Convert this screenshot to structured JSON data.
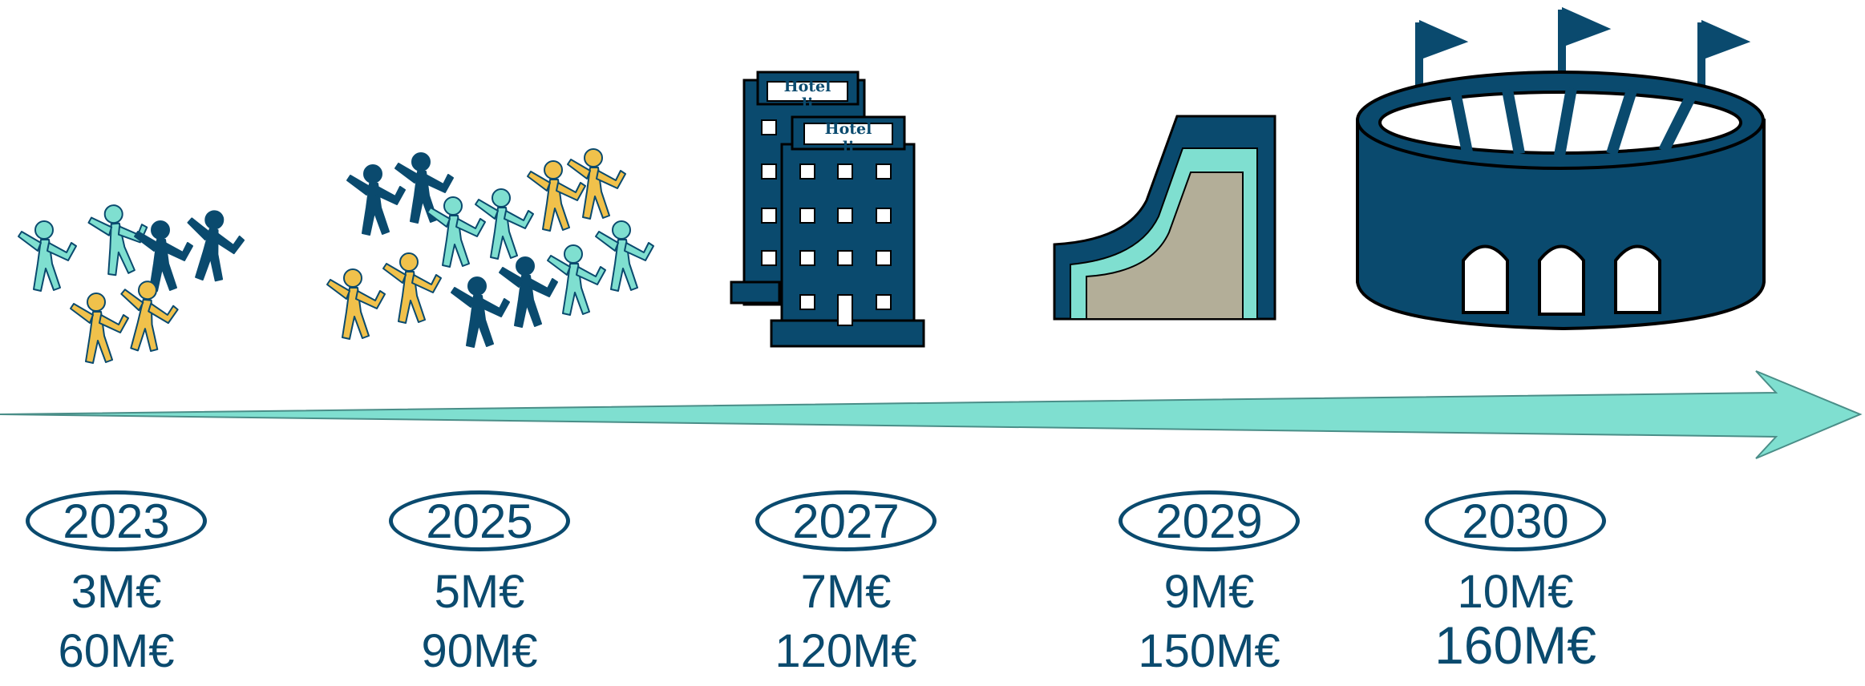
{
  "timeline": {
    "milestones": [
      {
        "year": "2023",
        "amount_1": "3M€",
        "amount_2": "60M€",
        "icon": "small-crowd-icon"
      },
      {
        "year": "2025",
        "amount_1": "5M€",
        "amount_2": "90M€",
        "icon": "large-crowd-icon"
      },
      {
        "year": "2027",
        "amount_1": "7M€",
        "amount_2": "120M€",
        "icon": "hotel-buildings-icon"
      },
      {
        "year": "2029",
        "amount_1": "9M€",
        "amount_2": "150M€",
        "icon": "ski-slope-icon"
      },
      {
        "year": "2030",
        "amount_1": "10M€",
        "amount_2": "160M€",
        "icon": "stadium-icon"
      }
    ],
    "hotel_sign": "Hotel",
    "hotel_sign_line2": "li"
  },
  "colors": {
    "navy": "#0a4a6e",
    "teal": "#7fdfd0",
    "yellow": "#f0c14b",
    "sand": "#b3ae98"
  }
}
